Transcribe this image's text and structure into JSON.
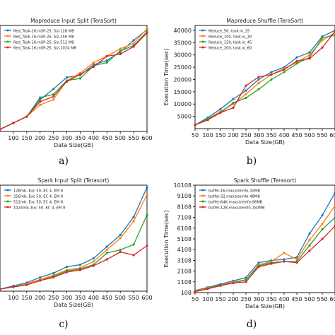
{
  "captions": [
    "a)",
    "b)",
    "c)",
    "d)"
  ],
  "colors": {
    "blue": "#1f77b4",
    "orange": "#ff7f0e",
    "green": "#2ca02c",
    "red": "#d62728"
  },
  "chart_data": [
    {
      "type": "line",
      "title": "Mapreduce Input Split (TeraSort)",
      "xlabel": "Data Size(GB)",
      "ylabel": "",
      "x": [
        50,
        100,
        150,
        200,
        250,
        300,
        350,
        400,
        450,
        500,
        550,
        600
      ],
      "xlim": [
        50,
        600
      ],
      "xticks": [
        "100",
        "150",
        "200",
        "250",
        "300",
        "350",
        "400",
        "450",
        "500",
        "550",
        "600"
      ],
      "ylim": [
        0,
        100
      ],
      "yticks": [],
      "series": [
        {
          "name": "Red_Task-16,mSP-25, Siz-128 MB",
          "color": "blue",
          "values": [
            2,
            8,
            14,
            30,
            40,
            51,
            53,
            63,
            67,
            75,
            86,
            96
          ]
        },
        {
          "name": "Red_Task-16,mSP-25, Siz-256 MB",
          "color": "orange",
          "values": [
            2,
            8,
            14,
            25,
            30,
            48,
            55,
            65,
            71,
            78,
            83,
            97
          ]
        },
        {
          "name": "Red_Task-16,mSP-25, Siz-512 MB",
          "color": "green",
          "values": [
            2,
            8,
            14,
            32,
            35,
            48,
            50,
            62,
            65,
            76,
            81,
            94
          ]
        },
        {
          "name": "Red_Task-16,mSP-25, Siz-1024 MB",
          "color": "red",
          "values": [
            2,
            8,
            14,
            28,
            33,
            47,
            54,
            61,
            71,
            73,
            80,
            93
          ]
        }
      ]
    },
    {
      "type": "line",
      "title": "Mapreduce Shuffle (TeraSort)",
      "xlabel": "Data Size(GB)",
      "ylabel": "Execution Time(sec)",
      "x": [
        50,
        100,
        150,
        200,
        250,
        300,
        350,
        400,
        450,
        500,
        550,
        600
      ],
      "xlim": [
        50,
        600
      ],
      "xticks": [
        "50",
        "100",
        "150",
        "200",
        "250",
        "300",
        "350",
        "400",
        "450",
        "500",
        "550",
        "600"
      ],
      "ylim": [
        0,
        42000
      ],
      "yticks": [
        "5000",
        "10000",
        "15000",
        "20000",
        "25000",
        "30000",
        "35000",
        "40000"
      ],
      "series": [
        {
          "name": "Reduce_50, task.io_15",
          "color": "blue",
          "values": [
            1500,
            4500,
            8000,
            12000,
            15500,
            20000,
            23000,
            25000,
            29000,
            31000,
            37500,
            40000
          ]
        },
        {
          "name": "Reduce_100, task.io_30",
          "color": "orange",
          "values": [
            1500,
            4000,
            7000,
            10000,
            14000,
            18500,
            22000,
            24500,
            27000,
            30000,
            36000,
            39000
          ]
        },
        {
          "name": "Reduce_150, task.io_45",
          "color": "green",
          "values": [
            1500,
            4000,
            6500,
            10500,
            12500,
            16000,
            20000,
            23000,
            26500,
            29000,
            37000,
            38000
          ]
        },
        {
          "name": "Reduce_200, task.io_60",
          "color": "red",
          "values": [
            1500,
            3500,
            6500,
            8500,
            17500,
            21000,
            22000,
            24000,
            27500,
            28500,
            33000,
            39500
          ]
        }
      ]
    },
    {
      "type": "line",
      "title": "Spark Input Split (Terasort)",
      "xlabel": "Data Size(GB)",
      "ylabel": "",
      "x": [
        50,
        100,
        150,
        200,
        250,
        300,
        350,
        400,
        450,
        500,
        550,
        600
      ],
      "xlim": [
        50,
        600
      ],
      "xticks": [
        "100",
        "150",
        "200",
        "250",
        "300",
        "350",
        "400",
        "450",
        "500",
        "550",
        "600"
      ],
      "ylim": [
        0,
        100
      ],
      "yticks": [],
      "series": [
        {
          "name": "128mb, Exc 50, EC 4, EM 8",
          "color": "blue",
          "values": [
            2,
            5,
            8,
            13,
            17,
            23,
            25,
            31,
            42,
            53,
            70,
            98
          ]
        },
        {
          "name": "256mb, Exc 50, EC 4, EM 8",
          "color": "orange",
          "values": [
            2,
            4,
            7,
            11,
            15,
            20,
            22,
            28,
            39,
            50,
            66,
            91
          ]
        },
        {
          "name": "512mb, Exc 50, EC 4, EM 8",
          "color": "green",
          "values": [
            2,
            4,
            6,
            10,
            14,
            19,
            21,
            25,
            36,
            39,
            44,
            72
          ]
        },
        {
          "name": "1024mb, Exc 50, EC 4, EM 8",
          "color": "red",
          "values": [
            2,
            4,
            6,
            10,
            13,
            18,
            20,
            24,
            30,
            37,
            34,
            43
          ]
        }
      ]
    },
    {
      "type": "line",
      "title": "Spark Shuffle (Terasort)",
      "xlabel": "Data Size(GB)",
      "ylabel": "Execution Time(sec)",
      "x": [
        50,
        100,
        150,
        200,
        250,
        300,
        350,
        400,
        450,
        500,
        550,
        600
      ],
      "xlim": [
        50,
        600
      ],
      "xticks": [
        "50",
        "100",
        "150",
        "200",
        "250",
        "300",
        "350",
        "400",
        "450",
        "500",
        "550",
        "600"
      ],
      "ylim": [
        108,
        10108
      ],
      "yticks": [
        "108",
        "1108",
        "2108",
        "3108",
        "4108",
        "5108",
        "6108",
        "7108",
        "8108",
        "9108",
        "10108"
      ],
      "series": [
        {
          "name": "buffer-16,maxsizeinfo-32MB",
          "color": "blue",
          "values": [
            300,
            600,
            900,
            1200,
            1500,
            2900,
            3100,
            3200,
            3400,
            5600,
            7300,
            9400
          ]
        },
        {
          "name": "buffer-32,maxsizeinfo-48MB",
          "color": "orange",
          "values": [
            250,
            550,
            800,
            1100,
            1300,
            2700,
            3000,
            3800,
            3200,
            5000,
            6500,
            8200
          ]
        },
        {
          "name": "buffer-64K,maxsizeinfo-96MB",
          "color": "green",
          "values": [
            200,
            500,
            800,
            1000,
            1300,
            2600,
            2900,
            3000,
            3000,
            4500,
            6000,
            7100
          ]
        },
        {
          "name": "buffer-128,maxsizeinfo-192MB",
          "color": "red",
          "values": [
            200,
            450,
            750,
            1000,
            1100,
            2500,
            2800,
            3000,
            2900,
            4000,
            5100,
            6300
          ]
        }
      ]
    }
  ]
}
